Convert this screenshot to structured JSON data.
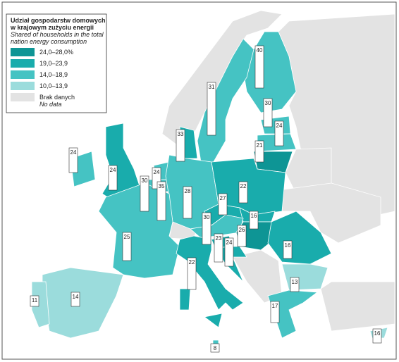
{
  "legend": {
    "title_lines": [
      "Udział gospodarstw domowych",
      "w krajowym zużyciu energii"
    ],
    "subtitle_lines": [
      "Shared of households in the total",
      "nation energy consumption"
    ],
    "items": [
      {
        "label": "24,0–28,0%",
        "color": "#0e9595"
      },
      {
        "label": "19,0–23,9",
        "color": "#19acac"
      },
      {
        "label": "14,0–18,9",
        "color": "#45c3c3"
      },
      {
        "label": "10,0–13,9",
        "color": "#9bdcdc"
      },
      {
        "label": "Brak danych",
        "label_en": "No data",
        "color": "#e3e3e3"
      }
    ]
  },
  "countries": [
    {
      "value": 40,
      "class": 2
    },
    {
      "value": 31,
      "class": 2
    },
    {
      "value": 30,
      "class": 2
    },
    {
      "value": 24,
      "class": 2
    },
    {
      "value": 21,
      "class": 0
    },
    {
      "value": 33,
      "class": 1
    },
    {
      "value": 24,
      "class": 2
    },
    {
      "value": 24,
      "class": 1
    },
    {
      "value": 24,
      "class": 2
    },
    {
      "value": 30,
      "class": 2
    },
    {
      "value": 35,
      "class": 2
    },
    {
      "value": 28,
      "class": 2
    },
    {
      "value": 22,
      "class": 1
    },
    {
      "value": 27,
      "class": 1
    },
    {
      "value": 16,
      "class": 1
    },
    {
      "value": 30,
      "class": 2
    },
    {
      "value": 23,
      "class": 1
    },
    {
      "value": 26,
      "class": 0
    },
    {
      "value": 24,
      "class": 1
    },
    {
      "value": 25,
      "class": 2
    },
    {
      "value": 22,
      "class": 1
    },
    {
      "value": 8,
      "class": 2
    },
    {
      "value": 14,
      "class": 3
    },
    {
      "value": 11,
      "class": 3
    },
    {
      "value": 16,
      "class": 1
    },
    {
      "value": 13,
      "class": 3
    },
    {
      "value": 17,
      "class": 2
    },
    {
      "value": 16,
      "class": 3
    }
  ]
}
